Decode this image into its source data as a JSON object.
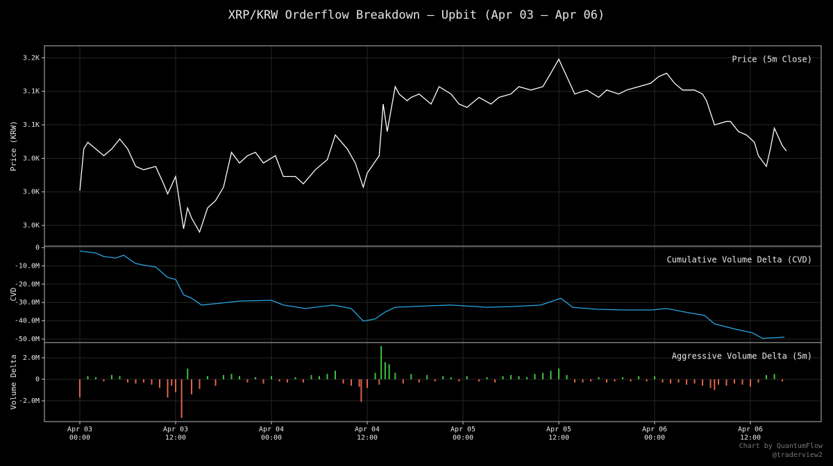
{
  "title": "XRP/KRW Orderflow Breakdown — Upbit (Apr 03 – Apr 06)",
  "footer": [
    "Chart by QuantumFlow",
    "@traderview2"
  ],
  "chart_data": [
    {
      "type": "line",
      "label": "Price (5m Close)",
      "ylabel": "Price (KRW)",
      "color": "#ffffff",
      "grid": true,
      "ylim": [
        2919,
        3218
      ],
      "yticks": [
        {
          "value": 3200,
          "label": "3.2K"
        },
        {
          "value": 3150,
          "label": "3.1K"
        },
        {
          "value": 3100,
          "label": "3.1K"
        },
        {
          "value": 3050,
          "label": "3.0K"
        },
        {
          "value": 3000,
          "label": "3.0K"
        },
        {
          "value": 2950,
          "label": "3.0K"
        }
      ],
      "x": [
        "Apr 03 00:00",
        "Apr 03 00:30",
        "Apr 03 01:00",
        "Apr 03 02:00",
        "Apr 03 03:00",
        "Apr 03 04:00",
        "Apr 03 05:00",
        "Apr 03 06:00",
        "Apr 03 07:00",
        "Apr 03 08:00",
        "Apr 03 09:30",
        "Apr 03 10:30",
        "Apr 03 11:00",
        "Apr 03 12:00",
        "Apr 03 13:00",
        "Apr 03 13:30",
        "Apr 03 14:00",
        "Apr 03 15:00",
        "Apr 03 16:00",
        "Apr 03 17:00",
        "Apr 03 18:00",
        "Apr 03 19:00",
        "Apr 03 20:00",
        "Apr 03 21:00",
        "Apr 03 22:00",
        "Apr 03 23:00",
        "Apr 04 00:30",
        "Apr 04 01:30",
        "Apr 04 03:00",
        "Apr 04 04:00",
        "Apr 04 05:30",
        "Apr 04 07:00",
        "Apr 04 08:00",
        "Apr 04 09:30",
        "Apr 04 10:30",
        "Apr 04 11:30",
        "Apr 04 12:00",
        "Apr 04 13:30",
        "Apr 04 14:00",
        "Apr 04 14:30",
        "Apr 04 15:30",
        "Apr 04 16:00",
        "Apr 04 17:00",
        "Apr 04 17:30",
        "Apr 04 18:30",
        "Apr 04 20:00",
        "Apr 04 21:00",
        "Apr 04 22:30",
        "Apr 04 23:30",
        "Apr 05 00:30",
        "Apr 05 02:00",
        "Apr 05 03:30",
        "Apr 05 04:30",
        "Apr 05 06:00",
        "Apr 05 07:00",
        "Apr 05 08:30",
        "Apr 05 10:00",
        "Apr 05 11:00",
        "Apr 05 12:00",
        "Apr 05 13:00",
        "Apr 05 14:00",
        "Apr 05 15:30",
        "Apr 05 17:00",
        "Apr 05 18:00",
        "Apr 05 19:30",
        "Apr 05 20:30",
        "Apr 05 22:00",
        "Apr 05 23:30",
        "Apr 06 00:30",
        "Apr 06 01:30",
        "Apr 06 02:30",
        "Apr 06 03:30",
        "Apr 06 05:00",
        "Apr 06 06:00",
        "Apr 06 06:30",
        "Apr 06 07:30",
        "Apr 06 09:00",
        "Apr 06 09:30",
        "Apr 06 10:30",
        "Apr 06 11:30",
        "Apr 06 12:30",
        "Apr 06 13:00",
        "Apr 06 14:00",
        "Apr 06 14:30",
        "Apr 06 15:00",
        "Apr 06 16:00",
        "Apr 06 16:30"
      ],
      "values": [
        3002,
        3064,
        3074,
        3064,
        3054,
        3064,
        3079,
        3064,
        3038,
        3033,
        3038,
        3012,
        2997,
        3023,
        2945,
        2976,
        2961,
        2940,
        2976,
        2987,
        3007,
        3059,
        3043,
        3054,
        3059,
        3043,
        3054,
        3023,
        3023,
        3012,
        3033,
        3048,
        3085,
        3064,
        3043,
        3007,
        3028,
        3054,
        3131,
        3090,
        3157,
        3146,
        3136,
        3141,
        3146,
        3131,
        3157,
        3146,
        3131,
        3126,
        3141,
        3131,
        3141,
        3146,
        3157,
        3152,
        3157,
        3177,
        3198,
        3172,
        3146,
        3152,
        3141,
        3152,
        3146,
        3152,
        3157,
        3162,
        3172,
        3177,
        3162,
        3152,
        3152,
        3146,
        3136,
        3100,
        3105,
        3105,
        3090,
        3085,
        3074,
        3054,
        3038,
        3064,
        3095,
        3069,
        3061
      ]
    },
    {
      "type": "line",
      "label": "Cumulative Volume Delta (CVD)",
      "ylabel": "CVD",
      "color": "#2aa7e3",
      "grid": true,
      "ylim": [
        -51900000,
        760000
      ],
      "yticks": [
        0,
        {
          "value": -10000000,
          "label": "-10.0M"
        },
        {
          "value": -20000000,
          "label": "-20.0M"
        },
        {
          "value": -30000000,
          "label": "-30.0M"
        },
        {
          "value": -40000000,
          "label": "-40.0M"
        },
        {
          "value": -50000000,
          "label": "-50.0M"
        }
      ],
      "x": [
        "Apr 03 00:00",
        "Apr 03 02:00",
        "Apr 03 03:00",
        "Apr 03 04:30",
        "Apr 03 05:30",
        "Apr 03 07:00",
        "Apr 03 08:15",
        "Apr 03 09:30",
        "Apr 03 11:00",
        "Apr 03 12:00",
        "Apr 03 13:00",
        "Apr 03 14:00",
        "Apr 03 15:15",
        "Apr 03 17:45",
        "Apr 03 20:00",
        "Apr 04 00:00",
        "Apr 04 01:30",
        "Apr 04 04:15",
        "Apr 04 07:45",
        "Apr 04 10:00",
        "Apr 04 11:30",
        "Apr 04 13:00",
        "Apr 04 14:15",
        "Apr 04 15:30",
        "Apr 04 20:00",
        "Apr 04 22:30",
        "Apr 05 03:00",
        "Apr 05 06:15",
        "Apr 05 09:45",
        "Apr 05 12:15",
        "Apr 05 13:45",
        "Apr 05 16:45",
        "Apr 05 20:15",
        "Apr 05 23:45",
        "Apr 06 01:30",
        "Apr 06 03:45",
        "Apr 06 06:15",
        "Apr 06 07:30",
        "Apr 06 10:15",
        "Apr 06 12:15",
        "Apr 06 13:30",
        "Apr 06 16:15"
      ],
      "values": [
        -1900000,
        -3000000,
        -4900000,
        -5700000,
        -4200000,
        -8700000,
        -9800000,
        -10600000,
        -16300000,
        -17400000,
        -25800000,
        -27700000,
        -31400000,
        -30300000,
        -29200000,
        -28800000,
        -31400000,
        -33300000,
        -31400000,
        -33300000,
        -40200000,
        -39000000,
        -35200000,
        -32600000,
        -31800000,
        -31400000,
        -32600000,
        -32200000,
        -31400000,
        -27700000,
        -32600000,
        -33700000,
        -34100000,
        -34100000,
        -33300000,
        -35200000,
        -37100000,
        -41700000,
        -44700000,
        -46600000,
        -49600000,
        -48900000
      ]
    },
    {
      "type": "bar",
      "label": "Aggressive Volume Delta (5m)",
      "ylabel": "Volume Delta",
      "pos_color": "#3cc43c",
      "neg_color": "#e0654a",
      "grid": true,
      "ylim": [
        -3940000,
        3420000
      ],
      "yticks": [
        {
          "value": 2000000,
          "label": "2.0M"
        },
        0,
        {
          "value": -2000000,
          "label": "-2.0M"
        }
      ],
      "xlim": [
        "Apr 02 19:34",
        "Apr 06 20:52"
      ],
      "xticks": [
        {
          "value": "Apr 03 00:00",
          "label": "Apr 03\n00:00"
        },
        {
          "value": "Apr 03 12:00",
          "label": "Apr 03\n12:00"
        },
        {
          "value": "Apr 04 00:00",
          "label": "Apr 04\n00:00"
        },
        {
          "value": "Apr 04 12:00",
          "label": "Apr 04\n12:00"
        },
        {
          "value": "Apr 05 00:00",
          "label": "Apr 05\n00:00"
        },
        {
          "value": "Apr 05 12:00",
          "label": "Apr 05\n12:00"
        },
        {
          "value": "Apr 06 00:00",
          "label": "Apr 06\n00:00"
        },
        {
          "value": "Apr 06 12:00",
          "label": "Apr 06\n12:00"
        }
      ],
      "x": [
        "Apr 03 00:00",
        "Apr 03 01:00",
        "Apr 03 02:00",
        "Apr 03 03:00",
        "Apr 03 04:00",
        "Apr 03 05:00",
        "Apr 03 06:00",
        "Apr 03 07:00",
        "Apr 03 08:00",
        "Apr 03 09:00",
        "Apr 03 10:00",
        "Apr 03 11:00",
        "Apr 03 11:30",
        "Apr 03 12:00",
        "Apr 03 12:45",
        "Apr 03 13:30",
        "Apr 03 14:00",
        "Apr 03 15:00",
        "Apr 03 16:00",
        "Apr 03 17:00",
        "Apr 03 18:00",
        "Apr 03 19:00",
        "Apr 03 20:00",
        "Apr 03 21:00",
        "Apr 03 22:00",
        "Apr 03 23:00",
        "Apr 04 00:00",
        "Apr 04 01:00",
        "Apr 04 02:00",
        "Apr 04 03:00",
        "Apr 04 04:00",
        "Apr 04 05:00",
        "Apr 04 06:00",
        "Apr 04 07:00",
        "Apr 04 08:00",
        "Apr 04 09:00",
        "Apr 04 10:00",
        "Apr 04 11:00",
        "Apr 04 11:15",
        "Apr 04 12:00",
        "Apr 04 13:00",
        "Apr 04 13:30",
        "Apr 04 13:45",
        "Apr 04 14:15",
        "Apr 04 14:45",
        "Apr 04 15:30",
        "Apr 04 16:30",
        "Apr 04 17:30",
        "Apr 04 18:30",
        "Apr 04 19:30",
        "Apr 04 20:30",
        "Apr 04 21:30",
        "Apr 04 22:30",
        "Apr 04 23:30",
        "Apr 05 00:30",
        "Apr 05 02:00",
        "Apr 05 03:00",
        "Apr 05 04:00",
        "Apr 05 05:00",
        "Apr 05 06:00",
        "Apr 05 07:00",
        "Apr 05 08:00",
        "Apr 05 09:00",
        "Apr 05 10:00",
        "Apr 05 11:00",
        "Apr 05 12:00",
        "Apr 05 13:00",
        "Apr 05 14:00",
        "Apr 05 15:00",
        "Apr 05 16:00",
        "Apr 05 17:00",
        "Apr 05 18:00",
        "Apr 05 19:00",
        "Apr 05 20:00",
        "Apr 05 21:00",
        "Apr 05 22:00",
        "Apr 05 23:00",
        "Apr 06 00:00",
        "Apr 06 01:00",
        "Apr 06 02:00",
        "Apr 06 03:00",
        "Apr 06 04:00",
        "Apr 06 05:00",
        "Apr 06 06:00",
        "Apr 06 07:00",
        "Apr 06 07:30",
        "Apr 06 08:00",
        "Apr 06 09:00",
        "Apr 06 10:00",
        "Apr 06 11:00",
        "Apr 06 12:00",
        "Apr 06 13:00",
        "Apr 06 14:00",
        "Apr 06 15:00",
        "Apr 06 16:00"
      ],
      "values": [
        -1700000,
        300000,
        200000,
        -200000,
        400000,
        300000,
        -300000,
        -400000,
        -300000,
        -500000,
        -800000,
        -1700000,
        -600000,
        -1200000,
        -3600000,
        1000000,
        -1400000,
        -900000,
        300000,
        -600000,
        400000,
        500000,
        300000,
        -300000,
        200000,
        -400000,
        300000,
        -200000,
        -300000,
        200000,
        -300000,
        400000,
        300000,
        500000,
        800000,
        -400000,
        -600000,
        -700000,
        -2100000,
        -800000,
        600000,
        -500000,
        3100000,
        1600000,
        1400000,
        600000,
        -400000,
        500000,
        -300000,
        400000,
        -200000,
        300000,
        200000,
        -200000,
        300000,
        -200000,
        200000,
        -300000,
        300000,
        400000,
        300000,
        200000,
        500000,
        600000,
        800000,
        1000000,
        400000,
        -300000,
        -300000,
        -200000,
        200000,
        -300000,
        -200000,
        200000,
        -200000,
        300000,
        -200000,
        300000,
        -300000,
        -400000,
        -300000,
        -500000,
        -400000,
        -600000,
        -800000,
        -1000000,
        -500000,
        -600000,
        -400000,
        -500000,
        -700000,
        -300000,
        400000,
        500000,
        -200000
      ]
    }
  ]
}
